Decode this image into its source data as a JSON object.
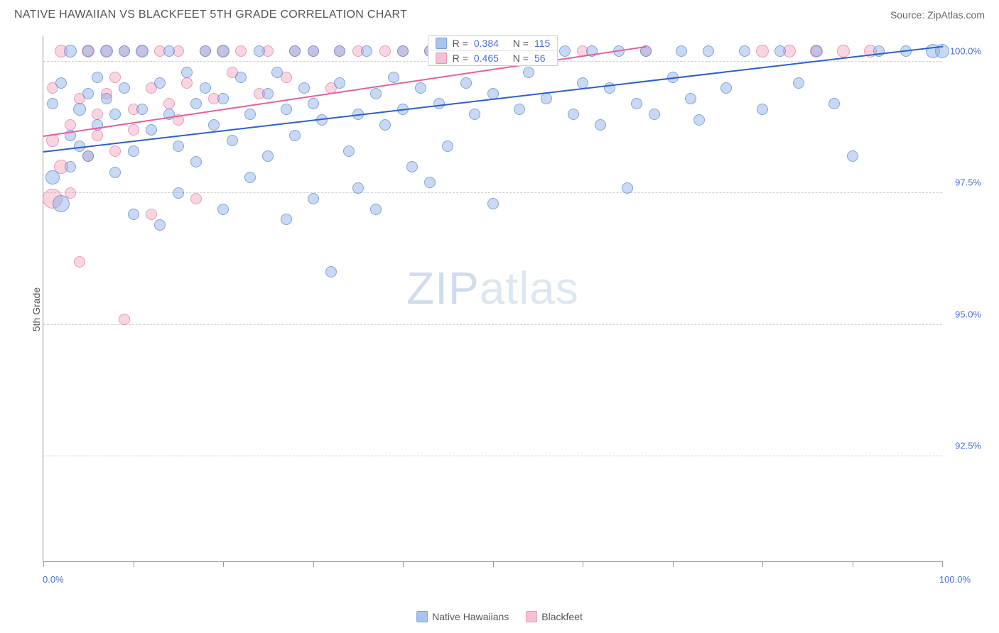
{
  "header": {
    "title": "NATIVE HAWAIIAN VS BLACKFEET 5TH GRADE CORRELATION CHART",
    "source": "Source: ZipAtlas.com"
  },
  "chart": {
    "type": "scatter",
    "y_axis_label": "5th Grade",
    "xlim": [
      0,
      100
    ],
    "ylim": [
      90.5,
      100.5
    ],
    "x_tick_positions": [
      0,
      10,
      20,
      30,
      40,
      50,
      60,
      70,
      80,
      90,
      100
    ],
    "x_tick_labels": {
      "0": "0.0%",
      "100": "100.0%"
    },
    "y_ticks": [
      92.5,
      95.0,
      97.5,
      100.0
    ],
    "y_tick_labels": [
      "92.5%",
      "95.0%",
      "97.5%",
      "100.0%"
    ],
    "grid_color": "#d0d0d0",
    "background_color": "#ffffff",
    "axis_color": "#999999",
    "tick_label_color": "#4a6fd8",
    "watermark": {
      "zip": "ZIP",
      "atlas": "atlas"
    },
    "series": [
      {
        "id": "native_hawaiians",
        "label": "Native Hawaiians",
        "color_fill": "rgba(130,170,230,0.45)",
        "color_stroke": "rgba(90,130,200,0.6)",
        "swatch_color": "#a9c4ec",
        "R": "0.384",
        "N": "115",
        "trend": {
          "x1": 0,
          "y1": 98.3,
          "x2": 100,
          "y2": 100.3,
          "color": "#2a5fd0",
          "width": 2
        },
        "points": [
          {
            "x": 1,
            "y": 99.2,
            "r": 8
          },
          {
            "x": 1,
            "y": 97.8,
            "r": 10
          },
          {
            "x": 2,
            "y": 99.6,
            "r": 8
          },
          {
            "x": 2,
            "y": 97.3,
            "r": 12
          },
          {
            "x": 3,
            "y": 100.2,
            "r": 9
          },
          {
            "x": 3,
            "y": 98.6,
            "r": 8
          },
          {
            "x": 3,
            "y": 98.0,
            "r": 8
          },
          {
            "x": 4,
            "y": 99.1,
            "r": 9
          },
          {
            "x": 4,
            "y": 98.4,
            "r": 8
          },
          {
            "x": 5,
            "y": 100.2,
            "r": 8
          },
          {
            "x": 5,
            "y": 99.4,
            "r": 8
          },
          {
            "x": 5,
            "y": 98.2,
            "r": 8
          },
          {
            "x": 6,
            "y": 99.7,
            "r": 8
          },
          {
            "x": 6,
            "y": 98.8,
            "r": 8
          },
          {
            "x": 7,
            "y": 100.2,
            "r": 9
          },
          {
            "x": 7,
            "y": 99.3,
            "r": 8
          },
          {
            "x": 8,
            "y": 99.0,
            "r": 8
          },
          {
            "x": 8,
            "y": 97.9,
            "r": 8
          },
          {
            "x": 9,
            "y": 100.2,
            "r": 8
          },
          {
            "x": 9,
            "y": 99.5,
            "r": 8
          },
          {
            "x": 10,
            "y": 98.3,
            "r": 8
          },
          {
            "x": 10,
            "y": 97.1,
            "r": 8
          },
          {
            "x": 11,
            "y": 100.2,
            "r": 9
          },
          {
            "x": 11,
            "y": 99.1,
            "r": 8
          },
          {
            "x": 12,
            "y": 98.7,
            "r": 8
          },
          {
            "x": 13,
            "y": 99.6,
            "r": 8
          },
          {
            "x": 13,
            "y": 96.9,
            "r": 8
          },
          {
            "x": 14,
            "y": 100.2,
            "r": 8
          },
          {
            "x": 14,
            "y": 99.0,
            "r": 8
          },
          {
            "x": 15,
            "y": 98.4,
            "r": 8
          },
          {
            "x": 15,
            "y": 97.5,
            "r": 8
          },
          {
            "x": 16,
            "y": 99.8,
            "r": 8
          },
          {
            "x": 17,
            "y": 99.2,
            "r": 8
          },
          {
            "x": 17,
            "y": 98.1,
            "r": 8
          },
          {
            "x": 18,
            "y": 100.2,
            "r": 8
          },
          {
            "x": 18,
            "y": 99.5,
            "r": 8
          },
          {
            "x": 19,
            "y": 98.8,
            "r": 8
          },
          {
            "x": 20,
            "y": 100.2,
            "r": 9
          },
          {
            "x": 20,
            "y": 99.3,
            "r": 8
          },
          {
            "x": 20,
            "y": 97.2,
            "r": 8
          },
          {
            "x": 21,
            "y": 98.5,
            "r": 8
          },
          {
            "x": 22,
            "y": 99.7,
            "r": 8
          },
          {
            "x": 23,
            "y": 99.0,
            "r": 8
          },
          {
            "x": 23,
            "y": 97.8,
            "r": 8
          },
          {
            "x": 24,
            "y": 100.2,
            "r": 8
          },
          {
            "x": 25,
            "y": 99.4,
            "r": 8
          },
          {
            "x": 25,
            "y": 98.2,
            "r": 8
          },
          {
            "x": 26,
            "y": 99.8,
            "r": 8
          },
          {
            "x": 27,
            "y": 99.1,
            "r": 8
          },
          {
            "x": 27,
            "y": 97.0,
            "r": 8
          },
          {
            "x": 28,
            "y": 100.2,
            "r": 8
          },
          {
            "x": 28,
            "y": 98.6,
            "r": 8
          },
          {
            "x": 29,
            "y": 99.5,
            "r": 8
          },
          {
            "x": 30,
            "y": 100.2,
            "r": 8
          },
          {
            "x": 30,
            "y": 99.2,
            "r": 8
          },
          {
            "x": 30,
            "y": 97.4,
            "r": 8
          },
          {
            "x": 31,
            "y": 98.9,
            "r": 8
          },
          {
            "x": 32,
            "y": 96.0,
            "r": 8
          },
          {
            "x": 33,
            "y": 100.2,
            "r": 8
          },
          {
            "x": 33,
            "y": 99.6,
            "r": 8
          },
          {
            "x": 34,
            "y": 98.3,
            "r": 8
          },
          {
            "x": 35,
            "y": 99.0,
            "r": 8
          },
          {
            "x": 35,
            "y": 97.6,
            "r": 8
          },
          {
            "x": 36,
            "y": 100.2,
            "r": 8
          },
          {
            "x": 37,
            "y": 99.4,
            "r": 8
          },
          {
            "x": 37,
            "y": 97.2,
            "r": 8
          },
          {
            "x": 38,
            "y": 98.8,
            "r": 8
          },
          {
            "x": 39,
            "y": 99.7,
            "r": 8
          },
          {
            "x": 40,
            "y": 100.2,
            "r": 8
          },
          {
            "x": 40,
            "y": 99.1,
            "r": 8
          },
          {
            "x": 41,
            "y": 98.0,
            "r": 8
          },
          {
            "x": 42,
            "y": 99.5,
            "r": 8
          },
          {
            "x": 43,
            "y": 100.2,
            "r": 8
          },
          {
            "x": 43,
            "y": 97.7,
            "r": 8
          },
          {
            "x": 44,
            "y": 99.2,
            "r": 8
          },
          {
            "x": 45,
            "y": 98.4,
            "r": 8
          },
          {
            "x": 46,
            "y": 100.2,
            "r": 8
          },
          {
            "x": 47,
            "y": 99.6,
            "r": 8
          },
          {
            "x": 48,
            "y": 99.0,
            "r": 8
          },
          {
            "x": 49,
            "y": 100.2,
            "r": 8
          },
          {
            "x": 50,
            "y": 99.4,
            "r": 8
          },
          {
            "x": 50,
            "y": 97.3,
            "r": 8
          },
          {
            "x": 52,
            "y": 100.2,
            "r": 8
          },
          {
            "x": 53,
            "y": 99.1,
            "r": 8
          },
          {
            "x": 54,
            "y": 99.8,
            "r": 8
          },
          {
            "x": 55,
            "y": 100.2,
            "r": 8
          },
          {
            "x": 56,
            "y": 99.3,
            "r": 8
          },
          {
            "x": 58,
            "y": 100.2,
            "r": 8
          },
          {
            "x": 59,
            "y": 99.0,
            "r": 8
          },
          {
            "x": 60,
            "y": 99.6,
            "r": 8
          },
          {
            "x": 61,
            "y": 100.2,
            "r": 8
          },
          {
            "x": 62,
            "y": 98.8,
            "r": 8
          },
          {
            "x": 63,
            "y": 99.5,
            "r": 8
          },
          {
            "x": 64,
            "y": 100.2,
            "r": 8
          },
          {
            "x": 65,
            "y": 97.6,
            "r": 8
          },
          {
            "x": 66,
            "y": 99.2,
            "r": 8
          },
          {
            "x": 67,
            "y": 100.2,
            "r": 8
          },
          {
            "x": 68,
            "y": 99.0,
            "r": 8
          },
          {
            "x": 70,
            "y": 99.7,
            "r": 8
          },
          {
            "x": 71,
            "y": 100.2,
            "r": 8
          },
          {
            "x": 72,
            "y": 99.3,
            "r": 8
          },
          {
            "x": 73,
            "y": 98.9,
            "r": 8
          },
          {
            "x": 74,
            "y": 100.2,
            "r": 8
          },
          {
            "x": 76,
            "y": 99.5,
            "r": 8
          },
          {
            "x": 78,
            "y": 100.2,
            "r": 8
          },
          {
            "x": 80,
            "y": 99.1,
            "r": 8
          },
          {
            "x": 82,
            "y": 100.2,
            "r": 8
          },
          {
            "x": 84,
            "y": 99.6,
            "r": 8
          },
          {
            "x": 86,
            "y": 100.2,
            "r": 8
          },
          {
            "x": 88,
            "y": 99.2,
            "r": 8
          },
          {
            "x": 90,
            "y": 98.2,
            "r": 8
          },
          {
            "x": 93,
            "y": 100.2,
            "r": 8
          },
          {
            "x": 96,
            "y": 100.2,
            "r": 8
          },
          {
            "x": 99,
            "y": 100.2,
            "r": 10
          },
          {
            "x": 100,
            "y": 100.2,
            "r": 10
          }
        ]
      },
      {
        "id": "blackfeet",
        "label": "Blackfeet",
        "color_fill": "rgba(240,150,180,0.4)",
        "color_stroke": "rgba(220,110,150,0.55)",
        "swatch_color": "#f4c0d4",
        "R": "0.465",
        "N": "56",
        "trend": {
          "x1": 0,
          "y1": 98.6,
          "x2": 67,
          "y2": 100.3,
          "color": "#e85f9a",
          "width": 2
        },
        "points": [
          {
            "x": 1,
            "y": 97.4,
            "r": 14
          },
          {
            "x": 1,
            "y": 98.5,
            "r": 9
          },
          {
            "x": 1,
            "y": 99.5,
            "r": 8
          },
          {
            "x": 2,
            "y": 98.0,
            "r": 10
          },
          {
            "x": 2,
            "y": 100.2,
            "r": 9
          },
          {
            "x": 3,
            "y": 98.8,
            "r": 8
          },
          {
            "x": 3,
            "y": 97.5,
            "r": 8
          },
          {
            "x": 4,
            "y": 99.3,
            "r": 8
          },
          {
            "x": 4,
            "y": 96.2,
            "r": 8
          },
          {
            "x": 5,
            "y": 100.2,
            "r": 9
          },
          {
            "x": 5,
            "y": 98.2,
            "r": 8
          },
          {
            "x": 6,
            "y": 99.0,
            "r": 8
          },
          {
            "x": 6,
            "y": 98.6,
            "r": 8
          },
          {
            "x": 7,
            "y": 100.2,
            "r": 8
          },
          {
            "x": 7,
            "y": 99.4,
            "r": 8
          },
          {
            "x": 8,
            "y": 98.3,
            "r": 8
          },
          {
            "x": 8,
            "y": 99.7,
            "r": 8
          },
          {
            "x": 9,
            "y": 100.2,
            "r": 8
          },
          {
            "x": 9,
            "y": 95.1,
            "r": 8
          },
          {
            "x": 10,
            "y": 99.1,
            "r": 8
          },
          {
            "x": 10,
            "y": 98.7,
            "r": 8
          },
          {
            "x": 11,
            "y": 100.2,
            "r": 8
          },
          {
            "x": 12,
            "y": 99.5,
            "r": 8
          },
          {
            "x": 12,
            "y": 97.1,
            "r": 8
          },
          {
            "x": 13,
            "y": 100.2,
            "r": 8
          },
          {
            "x": 14,
            "y": 99.2,
            "r": 8
          },
          {
            "x": 15,
            "y": 98.9,
            "r": 8
          },
          {
            "x": 15,
            "y": 100.2,
            "r": 8
          },
          {
            "x": 16,
            "y": 99.6,
            "r": 8
          },
          {
            "x": 17,
            "y": 97.4,
            "r": 8
          },
          {
            "x": 18,
            "y": 100.2,
            "r": 8
          },
          {
            "x": 19,
            "y": 99.3,
            "r": 8
          },
          {
            "x": 20,
            "y": 100.2,
            "r": 8
          },
          {
            "x": 21,
            "y": 99.8,
            "r": 8
          },
          {
            "x": 22,
            "y": 100.2,
            "r": 8
          },
          {
            "x": 24,
            "y": 99.4,
            "r": 8
          },
          {
            "x": 25,
            "y": 100.2,
            "r": 8
          },
          {
            "x": 27,
            "y": 99.7,
            "r": 8
          },
          {
            "x": 28,
            "y": 100.2,
            "r": 8
          },
          {
            "x": 30,
            "y": 100.2,
            "r": 8
          },
          {
            "x": 32,
            "y": 99.5,
            "r": 8
          },
          {
            "x": 33,
            "y": 100.2,
            "r": 8
          },
          {
            "x": 35,
            "y": 100.2,
            "r": 8
          },
          {
            "x": 38,
            "y": 100.2,
            "r": 8
          },
          {
            "x": 40,
            "y": 100.2,
            "r": 8
          },
          {
            "x": 43,
            "y": 100.2,
            "r": 8
          },
          {
            "x": 46,
            "y": 100.2,
            "r": 8
          },
          {
            "x": 50,
            "y": 100.2,
            "r": 8
          },
          {
            "x": 55,
            "y": 100.2,
            "r": 8
          },
          {
            "x": 60,
            "y": 100.2,
            "r": 8
          },
          {
            "x": 67,
            "y": 100.2,
            "r": 8
          },
          {
            "x": 80,
            "y": 100.2,
            "r": 9
          },
          {
            "x": 83,
            "y": 100.2,
            "r": 9
          },
          {
            "x": 86,
            "y": 100.2,
            "r": 9
          },
          {
            "x": 89,
            "y": 100.2,
            "r": 9
          },
          {
            "x": 92,
            "y": 100.2,
            "r": 9
          }
        ]
      }
    ],
    "legend_top": {
      "r_label": "R =",
      "n_label": "N ="
    },
    "legend_bottom": [
      {
        "label": "Native Hawaiians",
        "swatch": "#a9c4ec",
        "border": "#7aa3de"
      },
      {
        "label": "Blackfeet",
        "swatch": "#f4c0d4",
        "border": "#e79bbd"
      }
    ]
  }
}
